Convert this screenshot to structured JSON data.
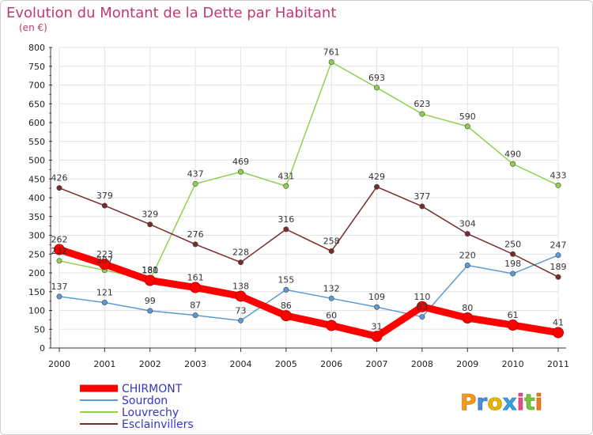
{
  "chart_data": {
    "type": "line",
    "title": "Evolution du Montant de la Dette par Habitant",
    "subtitle": "(en €)",
    "x": [
      "2000",
      "2001",
      "2002",
      "2003",
      "2004",
      "2005",
      "2006",
      "2007",
      "2008",
      "2009",
      "2010",
      "2011"
    ],
    "ylim": [
      0,
      800
    ],
    "yticks": [
      0,
      50,
      100,
      150,
      200,
      250,
      300,
      350,
      400,
      450,
      500,
      550,
      600,
      650,
      700,
      750,
      800
    ],
    "grid": true,
    "legend_position": "bottom-left",
    "series": [
      {
        "name": "CHIRMONT",
        "color": "#ff0000",
        "values": [
          262,
          223,
          180,
          161,
          138,
          86,
          60,
          31,
          110,
          80,
          61,
          41
        ]
      },
      {
        "name": "Sourdon",
        "color": "#5b9bd5",
        "values": [
          137,
          121,
          99,
          87,
          73,
          155,
          132,
          109,
          83,
          220,
          198,
          247
        ]
      },
      {
        "name": "Louvrechy",
        "color": "#8fd14f",
        "values": [
          232,
          207,
          181,
          437,
          469,
          431,
          761,
          693,
          623,
          590,
          490,
          433
        ]
      },
      {
        "name": "Esclainvillers",
        "color": "#7a2a2a",
        "values": [
          426,
          379,
          329,
          276,
          228,
          316,
          258,
          429,
          377,
          304,
          250,
          189
        ]
      }
    ],
    "logo_text": "Proxiti"
  }
}
